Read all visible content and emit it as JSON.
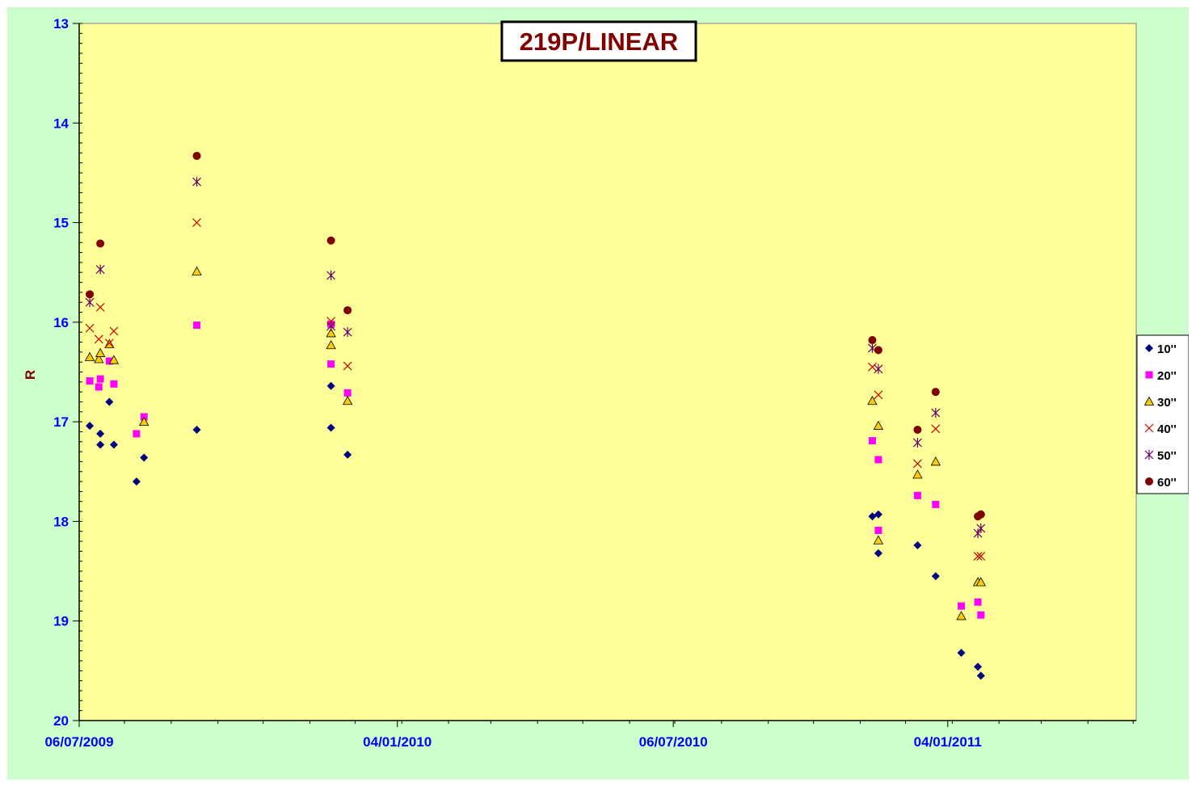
{
  "chart_data": {
    "type": "scatter",
    "title": "219P/LINEAR",
    "xlabel": "",
    "ylabel": "R",
    "x_axis": {
      "type": "date",
      "range": [
        "2009-06-07",
        "2011-05-09"
      ],
      "tick_labels": [
        "06/07/2009",
        "04/01/2010",
        "06/07/2010",
        "04/01/2011"
      ],
      "tick_label_dates": [
        "2009-06-07",
        "2010-01-04",
        "2010-07-06",
        "2011-01-04"
      ]
    },
    "y_axis": {
      "range": [
        13,
        20
      ],
      "reversed": true,
      "major_ticks": [
        "13",
        "14",
        "15",
        "16",
        "17",
        "18",
        "19",
        "20"
      ]
    },
    "grid": false,
    "legend_position": "right",
    "plot_background": "#ffff99",
    "chart_background": "#ccffcc",
    "series": [
      {
        "name": "10''",
        "marker": "diamond",
        "color": "#000080",
        "points": [
          [
            "2009-06-14",
            17.04
          ],
          [
            "2009-06-21",
            17.23
          ],
          [
            "2009-06-21",
            17.12
          ],
          [
            "2009-06-27",
            16.8
          ],
          [
            "2009-06-30",
            17.23
          ],
          [
            "2009-07-15",
            17.6
          ],
          [
            "2009-07-20",
            17.36
          ],
          [
            "2009-08-24",
            17.08
          ],
          [
            "2009-11-21",
            17.06
          ],
          [
            "2009-11-21",
            16.64
          ],
          [
            "2009-12-02",
            17.33
          ],
          [
            "2010-11-15",
            17.95
          ],
          [
            "2010-11-19",
            17.93
          ],
          [
            "2010-11-19",
            18.32
          ],
          [
            "2010-12-15",
            18.24
          ],
          [
            "2010-12-27",
            18.55
          ],
          [
            "2011-01-13",
            19.32
          ],
          [
            "2011-01-24",
            19.46
          ],
          [
            "2011-01-26",
            19.55
          ]
        ]
      },
      {
        "name": "20''",
        "marker": "square",
        "color": "#ff00ff",
        "points": [
          [
            "2009-06-14",
            16.59
          ],
          [
            "2009-06-20",
            16.65
          ],
          [
            "2009-06-21",
            16.57
          ],
          [
            "2009-06-27",
            16.39
          ],
          [
            "2009-06-30",
            16.62
          ],
          [
            "2009-07-15",
            17.12
          ],
          [
            "2009-07-20",
            16.95
          ],
          [
            "2009-08-24",
            16.03
          ],
          [
            "2009-11-21",
            16.42
          ],
          [
            "2009-11-21",
            16.02
          ],
          [
            "2009-12-02",
            16.71
          ],
          [
            "2010-11-15",
            17.19
          ],
          [
            "2010-11-19",
            17.38
          ],
          [
            "2010-11-19",
            18.09
          ],
          [
            "2010-12-15",
            17.74
          ],
          [
            "2010-12-27",
            17.83
          ],
          [
            "2011-01-13",
            18.85
          ],
          [
            "2011-01-24",
            18.81
          ],
          [
            "2011-01-26",
            18.94
          ]
        ]
      },
      {
        "name": "30''",
        "marker": "triangle",
        "color": "#ffcc00",
        "points": [
          [
            "2009-06-14",
            16.35
          ],
          [
            "2009-06-20",
            16.37
          ],
          [
            "2009-06-21",
            16.31
          ],
          [
            "2009-06-27",
            16.22
          ],
          [
            "2009-06-30",
            16.38
          ],
          [
            "2009-07-20",
            17.0
          ],
          [
            "2009-08-24",
            15.49
          ],
          [
            "2009-11-21",
            16.23
          ],
          [
            "2009-11-21",
            16.11
          ],
          [
            "2009-12-02",
            16.79
          ],
          [
            "2010-11-15",
            16.79
          ],
          [
            "2010-11-19",
            17.04
          ],
          [
            "2010-11-19",
            18.19
          ],
          [
            "2010-12-15",
            17.53
          ],
          [
            "2010-12-27",
            17.4
          ],
          [
            "2011-01-13",
            18.95
          ],
          [
            "2011-01-24",
            18.61
          ],
          [
            "2011-01-26",
            18.61
          ]
        ]
      },
      {
        "name": "40''",
        "marker": "x",
        "color": "#cc0000",
        "points": [
          [
            "2009-06-14",
            16.06
          ],
          [
            "2009-06-20",
            16.17
          ],
          [
            "2009-06-21",
            15.85
          ],
          [
            "2009-06-27",
            16.21
          ],
          [
            "2009-06-30",
            16.09
          ],
          [
            "2009-08-24",
            15.0
          ],
          [
            "2009-11-21",
            15.99
          ],
          [
            "2009-12-02",
            16.44
          ],
          [
            "2010-11-15",
            16.45
          ],
          [
            "2010-11-19",
            16.73
          ],
          [
            "2010-12-15",
            17.42
          ],
          [
            "2010-12-27",
            17.07
          ],
          [
            "2011-01-24",
            18.35
          ],
          [
            "2011-01-26",
            18.35
          ]
        ]
      },
      {
        "name": "50''",
        "marker": "star",
        "color": "#660066",
        "points": [
          [
            "2009-06-14",
            15.8
          ],
          [
            "2009-06-21",
            15.47
          ],
          [
            "2009-08-24",
            14.59
          ],
          [
            "2009-11-21",
            15.53
          ],
          [
            "2009-11-21",
            16.04
          ],
          [
            "2009-12-02",
            16.1
          ],
          [
            "2010-11-15",
            16.26
          ],
          [
            "2010-11-19",
            16.47
          ],
          [
            "2010-12-15",
            17.21
          ],
          [
            "2010-12-27",
            16.91
          ],
          [
            "2011-01-24",
            18.12
          ],
          [
            "2011-01-26",
            18.07
          ]
        ]
      },
      {
        "name": "60''",
        "marker": "circle",
        "color": "#800000",
        "points": [
          [
            "2009-06-14",
            15.72
          ],
          [
            "2009-06-21",
            15.21
          ],
          [
            "2009-08-24",
            14.33
          ],
          [
            "2009-11-21",
            15.18
          ],
          [
            "2009-12-02",
            15.88
          ],
          [
            "2010-11-15",
            16.18
          ],
          [
            "2010-11-19",
            16.28
          ],
          [
            "2010-12-15",
            17.08
          ],
          [
            "2010-12-27",
            16.7
          ],
          [
            "2011-01-24",
            17.95
          ],
          [
            "2011-01-26",
            17.93
          ]
        ]
      }
    ]
  }
}
